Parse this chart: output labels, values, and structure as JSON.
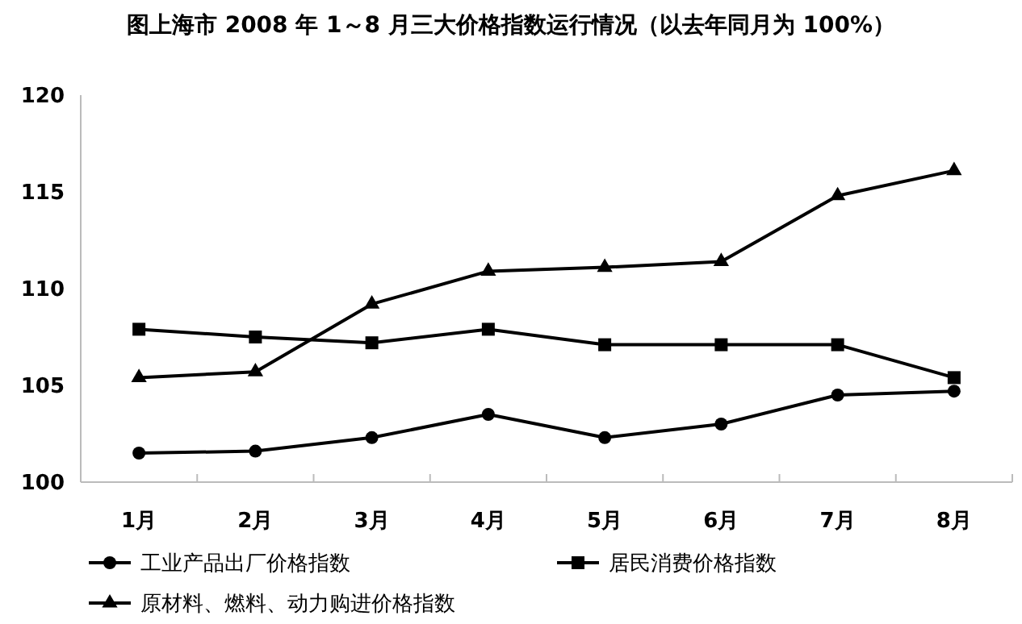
{
  "chart_data": {
    "type": "line",
    "title": "图上海市 2008 年 1～8 月三大价格指数运行情况（以去年同月为 100%）",
    "categories": [
      "1月",
      "2月",
      "3月",
      "4月",
      "5月",
      "6月",
      "7月",
      "8月"
    ],
    "series": [
      {
        "name": "工业产品出厂价格指数",
        "color": "#000000",
        "marker": "circle",
        "values": [
          101.5,
          101.6,
          102.3,
          103.5,
          102.3,
          103.0,
          104.5,
          104.7
        ]
      },
      {
        "name": "居民消费价格指数",
        "color": "#000000",
        "marker": "square",
        "values": [
          107.9,
          107.5,
          107.2,
          107.9,
          107.1,
          107.1,
          107.1,
          105.4
        ]
      },
      {
        "name": "原材料、燃料、动力购进价格指数",
        "color": "#000000",
        "marker": "triangle",
        "values": [
          105.4,
          105.7,
          109.2,
          110.9,
          111.1,
          111.4,
          114.8,
          116.1
        ]
      }
    ],
    "ylim": [
      100,
      120
    ],
    "yticks": [
      100,
      105,
      110,
      115,
      120
    ],
    "grid": false,
    "legend": "bottom",
    "line_style": "solid"
  }
}
